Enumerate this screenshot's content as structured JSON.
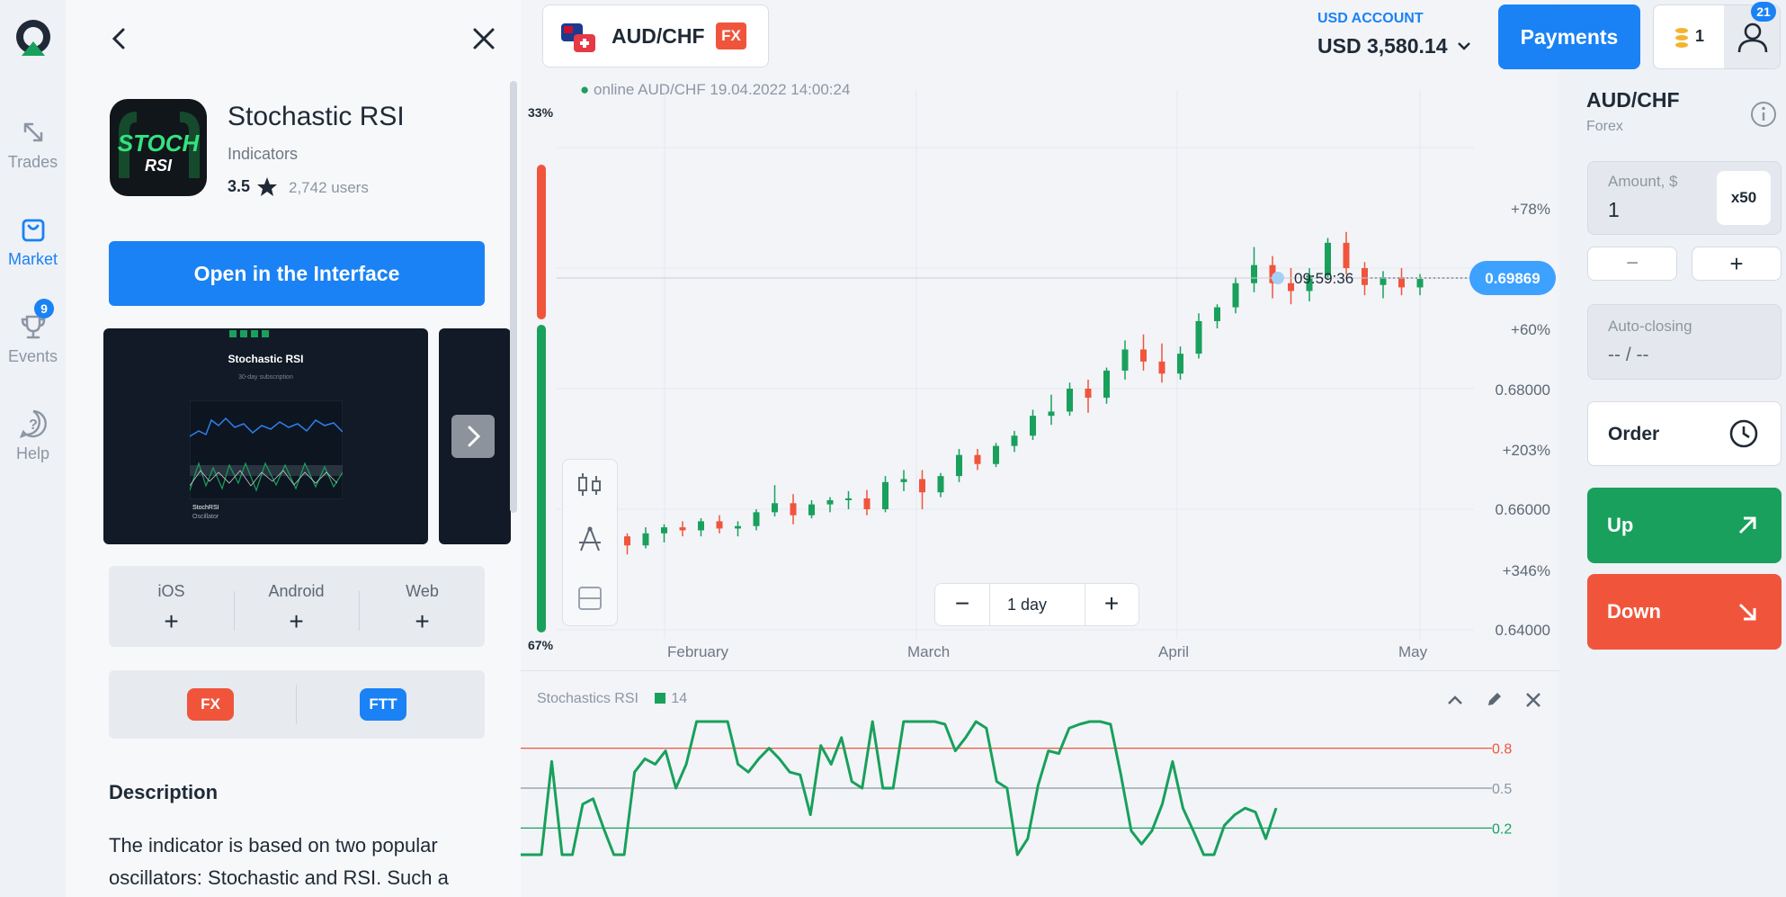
{
  "nav": {
    "trades": "Trades",
    "market": "Market",
    "events": "Events",
    "events_badge": "9",
    "help": "Help"
  },
  "indicator": {
    "name": "Stochastic RSI",
    "category": "Indicators",
    "rating": "3.5",
    "users": "2,742 users",
    "open_label": "Open in the Interface",
    "icon_text_top": "STOCH",
    "icon_text_bottom": "RSI",
    "screenshot": {
      "title": "Stochastic RSI",
      "subtitle": "30-day subscription",
      "caption1": "StochRSI",
      "caption2": "Oscillator"
    },
    "platforms": [
      "iOS",
      "Android",
      "Web"
    ],
    "plus": "+",
    "types": [
      "FX",
      "FTT"
    ],
    "description_heading": "Description",
    "description": "The indicator is based on two popular oscillators: Stochastic and RSI. Such a"
  },
  "header": {
    "asset": "AUD/CHF",
    "asset_tag": "FX",
    "account_label": "USD ACCOUNT",
    "balance": "USD 3,580.14",
    "payments": "Payments",
    "coins": "1",
    "profile_badge": "21"
  },
  "chart": {
    "status": "online AUD/CHF  19.04.2022 14:00:24",
    "sentiment_top": "33%",
    "sentiment_bottom": "67%",
    "sentiment_sell": 0.33,
    "timer": "09:59:36",
    "current_price": "0.69869",
    "price_labels": [
      "+78%",
      "+60%",
      "0.68000",
      "+203%",
      "0.66000",
      "+346%",
      "0.64000"
    ],
    "months": [
      "February",
      "March",
      "April",
      "May"
    ],
    "timeframe": "1 day",
    "minus": "−",
    "plus": "+",
    "colors": {
      "up": "#19a05c",
      "down": "#f0553c"
    }
  },
  "chart_data": {
    "type": "candlestick",
    "pair": "AUD/CHF",
    "ylim": [
      0.6325,
      0.7175
    ],
    "x": [
      "February",
      "March",
      "April",
      "May"
    ],
    "candles_approx": [
      [
        0.6575,
        0.6585,
        0.654,
        0.6555
      ],
      [
        0.6555,
        0.656,
        0.6525,
        0.654
      ],
      [
        0.654,
        0.657,
        0.6535,
        0.656
      ],
      [
        0.656,
        0.6575,
        0.6545,
        0.657
      ],
      [
        0.657,
        0.658,
        0.6555,
        0.6565
      ],
      [
        0.6565,
        0.6585,
        0.6555,
        0.658
      ],
      [
        0.658,
        0.659,
        0.656,
        0.6568
      ],
      [
        0.6568,
        0.658,
        0.6555,
        0.6572
      ],
      [
        0.6572,
        0.66,
        0.6565,
        0.6595
      ],
      [
        0.6595,
        0.664,
        0.6588,
        0.661
      ],
      [
        0.661,
        0.6625,
        0.6575,
        0.659
      ],
      [
        0.659,
        0.6615,
        0.6585,
        0.6608
      ],
      [
        0.6608,
        0.662,
        0.6595,
        0.6615
      ],
      [
        0.6615,
        0.663,
        0.66,
        0.6618
      ],
      [
        0.6618,
        0.6632,
        0.659,
        0.66
      ],
      [
        0.66,
        0.6655,
        0.6595,
        0.6645
      ],
      [
        0.6645,
        0.6665,
        0.663,
        0.665
      ],
      [
        0.665,
        0.6665,
        0.66,
        0.6628
      ],
      [
        0.6628,
        0.666,
        0.662,
        0.6655
      ],
      [
        0.6655,
        0.67,
        0.6645,
        0.669
      ],
      [
        0.669,
        0.67,
        0.6665,
        0.6675
      ],
      [
        0.6675,
        0.671,
        0.667,
        0.6705
      ],
      [
        0.6705,
        0.673,
        0.6695,
        0.6722
      ],
      [
        0.6722,
        0.6765,
        0.6715,
        0.6755
      ],
      [
        0.6755,
        0.679,
        0.674,
        0.6762
      ],
      [
        0.6762,
        0.681,
        0.6755,
        0.68
      ],
      [
        0.68,
        0.6815,
        0.676,
        0.6785
      ],
      [
        0.6785,
        0.6835,
        0.6775,
        0.683
      ],
      [
        0.683,
        0.688,
        0.6815,
        0.6865
      ],
      [
        0.6865,
        0.689,
        0.683,
        0.6845
      ],
      [
        0.6845,
        0.6875,
        0.681,
        0.6825
      ],
      [
        0.6825,
        0.687,
        0.6815,
        0.6858
      ],
      [
        0.6858,
        0.6925,
        0.685,
        0.6912
      ],
      [
        0.6912,
        0.694,
        0.69,
        0.6935
      ],
      [
        0.6935,
        0.6985,
        0.6925,
        0.6975
      ],
      [
        0.6975,
        0.7035,
        0.696,
        0.7005
      ],
      [
        0.7005,
        0.702,
        0.695,
        0.6975
      ],
      [
        0.6975,
        0.7,
        0.694,
        0.6962
      ],
      [
        0.6962,
        0.7,
        0.6945,
        0.6988
      ],
      [
        0.6988,
        0.705,
        0.698,
        0.7042
      ],
      [
        0.7042,
        0.706,
        0.699,
        0.7
      ],
      [
        0.7,
        0.701,
        0.6955,
        0.6972
      ],
      [
        0.6972,
        0.6995,
        0.695,
        0.6985
      ],
      [
        0.6985,
        0.7,
        0.6955,
        0.6968
      ],
      [
        0.6968,
        0.699,
        0.6955,
        0.6982
      ]
    ]
  },
  "stoch": {
    "label": "Stochastics RSI",
    "period": "14",
    "levels": [
      "0.8",
      "0.5",
      "0.2"
    ],
    "color": "#19a05c"
  },
  "stoch_data": {
    "type": "line",
    "levels": [
      0.8,
      0.5,
      0.2
    ],
    "ylim": [
      -0.05,
      1.05
    ],
    "values": [
      0.0,
      0.0,
      0.0,
      0.7,
      0.0,
      0.0,
      0.38,
      0.42,
      0.2,
      0.0,
      0.0,
      0.62,
      0.72,
      0.68,
      0.78,
      0.5,
      0.68,
      1.0,
      1.0,
      1.0,
      1.0,
      0.68,
      0.62,
      0.72,
      0.8,
      0.72,
      0.62,
      0.6,
      0.3,
      0.82,
      0.68,
      0.88,
      0.55,
      0.5,
      1.0,
      0.5,
      0.5,
      1.0,
      1.0,
      1.0,
      1.0,
      0.98,
      0.78,
      0.88,
      1.0,
      0.95,
      0.55,
      0.5,
      0.0,
      0.12,
      0.52,
      0.78,
      0.76,
      0.95,
      0.98,
      1.0,
      1.0,
      0.98,
      0.6,
      0.18,
      0.08,
      0.18,
      0.38,
      0.7,
      0.35,
      0.18,
      0.0,
      0.0,
      0.22,
      0.3,
      0.35,
      0.32,
      0.12,
      0.35
    ]
  },
  "right": {
    "pair": "AUD/CHF",
    "type": "Forex",
    "amount_label": "Amount, $",
    "amount": "1",
    "multiplier": "x50",
    "minus": "−",
    "plus": "+",
    "autoclose_label": "Auto-closing",
    "autoclose_value": "-- / --",
    "order": "Order",
    "up": "Up",
    "down": "Down",
    "colors": {
      "up": "#19a05c",
      "down": "#f0553c",
      "accent": "#1a82f5"
    }
  }
}
